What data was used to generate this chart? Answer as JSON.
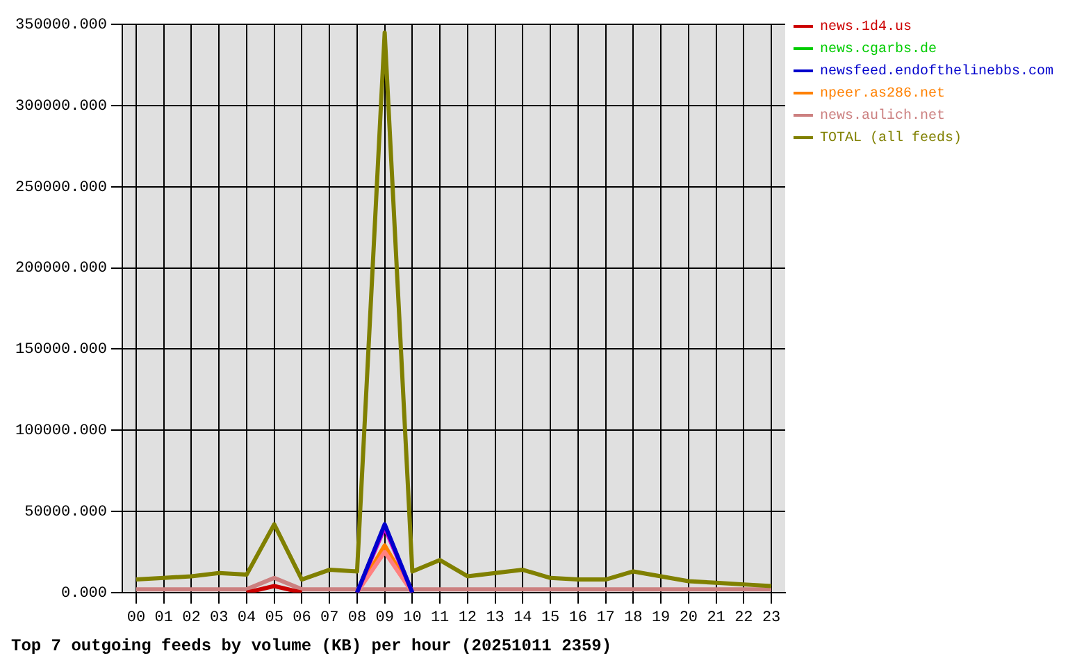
{
  "chart_data": {
    "type": "line",
    "title": "Top 7 outgoing feeds by volume (KB) per hour (20251011 2359)",
    "categories": [
      "00",
      "01",
      "02",
      "03",
      "04",
      "05",
      "06",
      "07",
      "08",
      "09",
      "10",
      "11",
      "12",
      "13",
      "14",
      "15",
      "16",
      "17",
      "18",
      "19",
      "20",
      "21",
      "22",
      "23"
    ],
    "series": [
      {
        "name": "news.1d4.us",
        "color": "#cc0000",
        "values": [
          null,
          null,
          null,
          null,
          0,
          4000,
          0,
          null,
          null,
          null,
          null,
          null,
          null,
          null,
          null,
          null,
          null,
          null,
          null,
          null,
          null,
          null,
          null,
          null
        ]
      },
      {
        "name": "news.cgarbs.de",
        "color": "#00cc00",
        "values": [
          null,
          null,
          null,
          null,
          null,
          null,
          null,
          null,
          null,
          null,
          null,
          null,
          null,
          null,
          null,
          null,
          null,
          null,
          null,
          null,
          null,
          null,
          null,
          null
        ]
      },
      {
        "name": "newsfeed.endofthelinebbs.com",
        "color": "#0000cc",
        "values": [
          null,
          null,
          null,
          null,
          null,
          null,
          null,
          null,
          0,
          42000,
          0,
          null,
          null,
          null,
          null,
          null,
          null,
          null,
          null,
          null,
          null,
          null,
          null,
          null
        ]
      },
      {
        "color": "#cc00cc",
        "values": [
          null,
          null,
          null,
          null,
          null,
          null,
          null,
          null,
          0,
          40000,
          0,
          null,
          null,
          null,
          null,
          null,
          null,
          null,
          null,
          null,
          null,
          null,
          null,
          null
        ]
      },
      {
        "color": "#ff8080",
        "values": [
          null,
          null,
          null,
          null,
          null,
          null,
          null,
          null,
          0,
          25000,
          0,
          null,
          null,
          null,
          null,
          null,
          null,
          null,
          null,
          null,
          null,
          null,
          null,
          null
        ]
      },
      {
        "name": "npeer.as286.net",
        "color": "#ff8000",
        "values": [
          null,
          null,
          null,
          null,
          null,
          null,
          null,
          null,
          0,
          29000,
          0,
          null,
          null,
          null,
          null,
          null,
          null,
          null,
          null,
          null,
          null,
          null,
          null,
          null
        ]
      },
      {
        "name": "news.aulich.net",
        "color": "#cc8080",
        "values": [
          2000,
          2000,
          2000,
          2000,
          2000,
          9000,
          2000,
          2000,
          2000,
          2000,
          2000,
          2000,
          2000,
          2000,
          2000,
          2000,
          2000,
          2000,
          2000,
          2000,
          2000,
          2000,
          2000,
          2000
        ]
      },
      {
        "name": "TOTAL (all feeds)",
        "color": "#808000",
        "values": [
          8000,
          9000,
          10000,
          12000,
          11000,
          42000,
          8000,
          14000,
          13000,
          345000,
          13000,
          20000,
          10000,
          12000,
          14000,
          9000,
          8000,
          8000,
          13000,
          10000,
          7000,
          6000,
          5000,
          4000
        ]
      }
    ],
    "ylim": [
      0,
      350000
    ],
    "yticks": [
      {
        "value": 0,
        "label": "0.000"
      },
      {
        "value": 50000,
        "label": "50000.000"
      },
      {
        "value": 100000,
        "label": "100000.000"
      },
      {
        "value": 150000,
        "label": "150000.000"
      },
      {
        "value": 200000,
        "label": "200000.000"
      },
      {
        "value": 250000,
        "label": "250000.000"
      },
      {
        "value": 300000,
        "label": "300000.000"
      },
      {
        "value": 350000,
        "label": "350000.000"
      }
    ],
    "grid": true,
    "legend": "right",
    "marker": "none",
    "line_style": "solid"
  }
}
